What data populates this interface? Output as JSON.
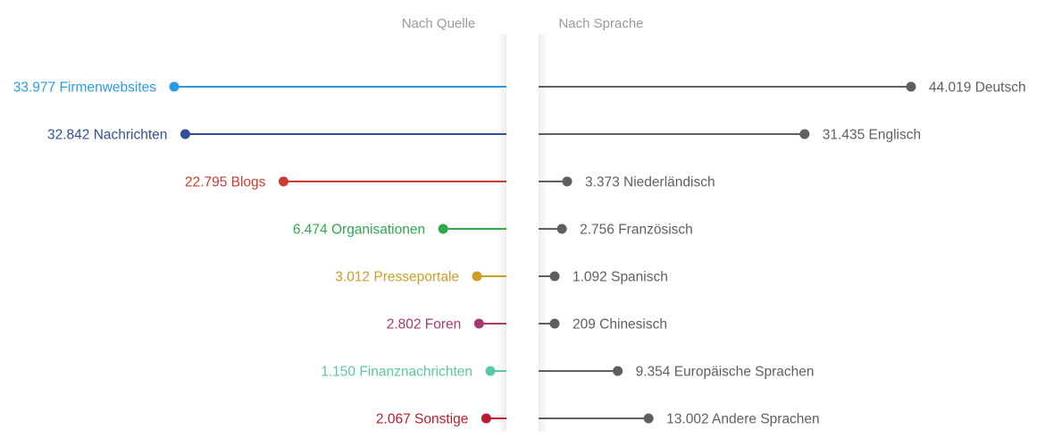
{
  "headers": {
    "left": "Nach Quelle",
    "right": "Nach Sprache"
  },
  "chart_data": [
    {
      "type": "lollipop",
      "title": "Nach Quelle",
      "direction": "left",
      "categories": [
        "Firmenwebsites",
        "Nachrichten",
        "Blogs",
        "Organisationen",
        "Presseportale",
        "Foren",
        "Finanznachrichten",
        "Sonstige"
      ],
      "values": [
        33977,
        32842,
        22795,
        6474,
        3012,
        2802,
        1150,
        2067
      ],
      "value_labels": [
        "33.977",
        "32.842",
        "22.795",
        "6.474",
        "3.012",
        "2.802",
        "1.150",
        "2.067"
      ],
      "colors": [
        "#2a9de2",
        "#354f94",
        "#cc3b2f",
        "#2ea84f",
        "#cf9c26",
        "#a8386e",
        "#5cc6a8",
        "#b81c2e"
      ]
    },
    {
      "type": "lollipop",
      "title": "Nach Sprache",
      "direction": "right",
      "categories": [
        "Deutsch",
        "Englisch",
        "Niederländisch",
        "Französisch",
        "Spanisch",
        "Chinesisch",
        "Europäische Sprachen",
        "Andere Sprachen"
      ],
      "values": [
        44019,
        31435,
        3373,
        2756,
        1092,
        209,
        9354,
        13002
      ],
      "value_labels": [
        "44.019",
        "31.435",
        "3.373",
        "2.756",
        "1.092",
        "209",
        "9.354",
        "13.002"
      ],
      "colors": [
        "#5f5f5f",
        "#5f5f5f",
        "#5f5f5f",
        "#5f5f5f",
        "#5f5f5f",
        "#5f5f5f",
        "#5f5f5f",
        "#5f5f5f"
      ]
    }
  ]
}
